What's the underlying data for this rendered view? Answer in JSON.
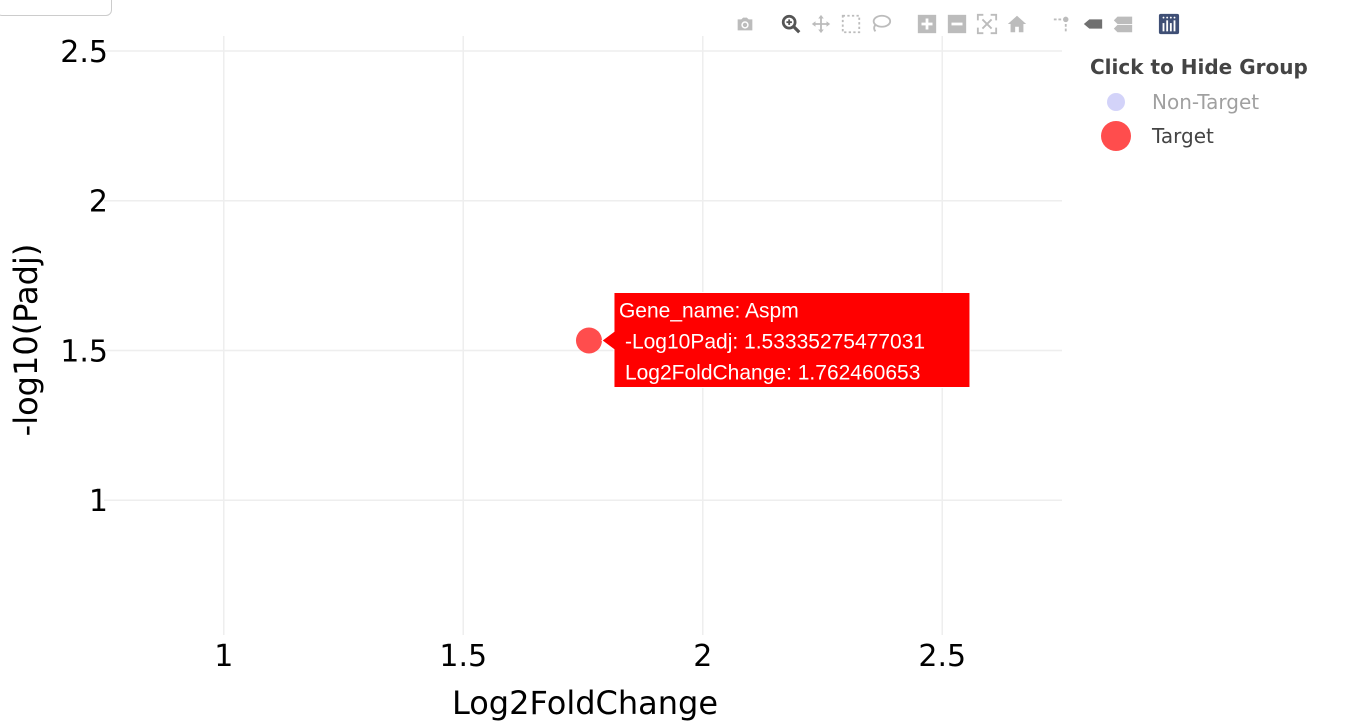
{
  "chart_data": {
    "type": "scatter",
    "xlabel": "Log2FoldChange",
    "ylabel": "-log10(Padj)",
    "xlim": [
      0.75,
      2.75
    ],
    "ylim": [
      0.55,
      2.55
    ],
    "x_ticks": [
      1,
      1.5,
      2,
      2.5
    ],
    "x_tick_labels": [
      "1",
      "1.5",
      "2",
      "2.5"
    ],
    "y_ticks": [
      1,
      1.5,
      2,
      2.5
    ],
    "y_tick_labels": [
      "1",
      "1.5",
      "2",
      "2.5"
    ],
    "grid": true,
    "legend_position": "top-right",
    "series": [
      {
        "name": "Non-Target",
        "color": "#a8a8f5",
        "points": [],
        "hidden": true
      },
      {
        "name": "Target",
        "color": "#ff4d4d",
        "points": [
          {
            "x": 1.762460653,
            "y": 1.53335275477031
          }
        ]
      }
    ],
    "hover": {
      "lines": [
        "Gene_name: Aspm",
        "-Log10Padj: 1.53335275477031",
        "Log2FoldChange: 1.762460653"
      ],
      "background": "#ff0000"
    }
  },
  "legend": {
    "title": "Click to Hide Group",
    "items": [
      {
        "label": "Non-Target",
        "color": "#a8a8f5",
        "hidden": true
      },
      {
        "label": "Target",
        "color": "#ff4d4d",
        "hidden": false
      }
    ]
  },
  "modebar": {
    "icons": [
      "camera-icon",
      "zoom-icon",
      "pan-icon",
      "box-select-icon",
      "lasso-icon",
      "zoom-in-icon",
      "zoom-out-icon",
      "autoscale-icon",
      "reset-axes-icon",
      "spike-lines-icon",
      "hover-closest-icon",
      "hover-compare-icon",
      "plotly-logo-icon"
    ]
  }
}
